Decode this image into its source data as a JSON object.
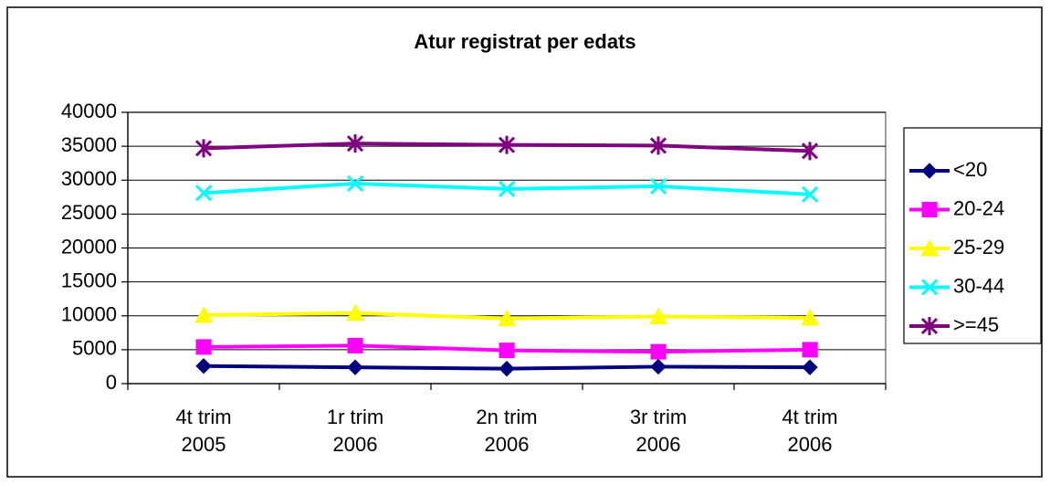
{
  "chart_data": {
    "type": "line",
    "title": "Atur registrat per edats",
    "categories": [
      "4t trim\n2005",
      "1r trim\n2006",
      "2n trim\n2006",
      "3r trim\n2006",
      "4t trim\n2006"
    ],
    "series": [
      {
        "name": "<20",
        "color": "#000080",
        "marker": "diamond",
        "values": [
          2600,
          2400,
          2200,
          2500,
          2400
        ]
      },
      {
        "name": "20-24",
        "color": "#ff00ff",
        "marker": "square",
        "values": [
          5400,
          5600,
          4900,
          4700,
          5000
        ]
      },
      {
        "name": "25-29",
        "color": "#ffff00",
        "marker": "triangle",
        "values": [
          10100,
          10400,
          9600,
          9900,
          9700
        ]
      },
      {
        "name": "30-44",
        "color": "#00ffff",
        "marker": "x",
        "values": [
          28100,
          29500,
          28700,
          29100,
          27900
        ]
      },
      {
        "name": ">=45",
        "color": "#800080",
        "marker": "star",
        "values": [
          34700,
          35400,
          35200,
          35100,
          34300
        ]
      }
    ],
    "ylim": [
      0,
      40000
    ],
    "yticks": [
      0,
      5000,
      10000,
      15000,
      20000,
      25000,
      30000,
      35000,
      40000
    ],
    "grid": true,
    "legend": "right"
  }
}
